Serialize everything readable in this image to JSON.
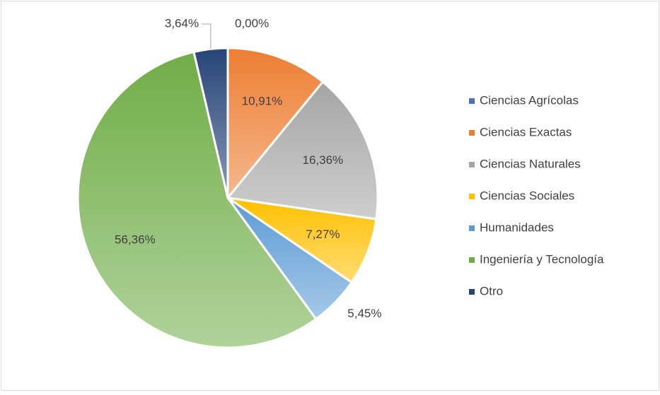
{
  "chart_data": {
    "type": "pie",
    "categories": [
      "Ciencias Agrícolas",
      "Ciencias Exactas",
      "Ciencias Naturales",
      "Ciencias Sociales",
      "Humanidades",
      "Ingeniería y Tecnología",
      "Otro"
    ],
    "values": [
      0.0,
      10.91,
      16.36,
      7.27,
      5.45,
      56.36,
      3.64
    ],
    "value_labels": [
      "0,00%",
      "10,91%",
      "16,36%",
      "7,27%",
      "5,45%",
      "56,36%",
      "3,64%"
    ],
    "colors": [
      "#4472c4",
      "#ed7d31",
      "#a5a5a5",
      "#ffc000",
      "#5b9bd5",
      "#70ad47",
      "#264478"
    ],
    "legend": "right"
  }
}
